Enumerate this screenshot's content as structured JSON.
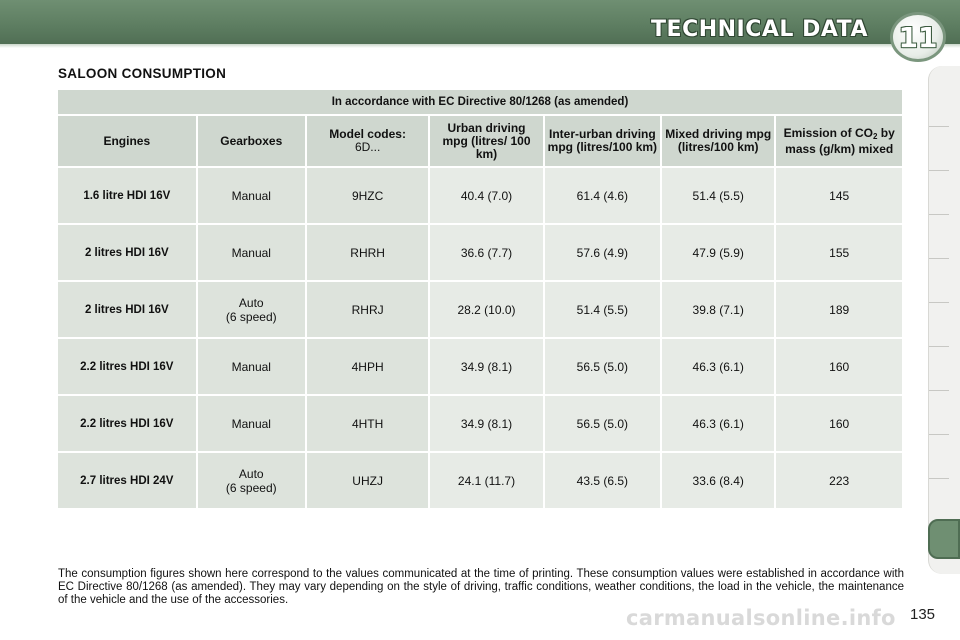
{
  "header": {
    "title": "TECHNICAL DATA",
    "chapter_number": "11",
    "color": "#5c7c60"
  },
  "section_title": "SALOON CONSUMPTION",
  "table": {
    "directive": "In accordance with EC Directive 80/1268 (as amended)",
    "columns": {
      "engines": "Engines",
      "gearboxes": "Gearboxes",
      "model_codes_label": "Model codes:",
      "model_codes_prefix": "6D...",
      "urban": "Urban driving mpg (litres/ 100 km)",
      "inter_urban": "Inter-urban driving mpg (litres/100 km)",
      "mixed": "Mixed driving mpg (litres/100 km)",
      "emission_a": "Emission of CO",
      "emission_sub": "2",
      "emission_b": " by mass (g/km) mixed"
    },
    "rows": [
      {
        "engine": "1.6 litre HDI 16V",
        "gearbox": "Manual",
        "gearbox_sub": "",
        "model": "9HZC",
        "urban": "40.4 (7.0)",
        "inter_urban": "61.4 (4.6)",
        "mixed": "51.4 (5.5)",
        "emission": "145"
      },
      {
        "engine": "2 litres HDI 16V",
        "gearbox": "Manual",
        "gearbox_sub": "",
        "model": "RHRH",
        "urban": "36.6 (7.7)",
        "inter_urban": "57.6 (4.9)",
        "mixed": "47.9 (5.9)",
        "emission": "155"
      },
      {
        "engine": "2 litres HDI 16V",
        "gearbox": "Auto",
        "gearbox_sub": "(6 speed)",
        "model": "RHRJ",
        "urban": "28.2 (10.0)",
        "inter_urban": "51.4 (5.5)",
        "mixed": "39.8 (7.1)",
        "emission": "189"
      },
      {
        "engine": "2.2 litres HDI 16V",
        "gearbox": "Manual",
        "gearbox_sub": "",
        "model": "4HPH",
        "urban": "34.9 (8.1)",
        "inter_urban": "56.5 (5.0)",
        "mixed": "46.3 (6.1)",
        "emission": "160"
      },
      {
        "engine": "2.2 litres HDI 16V",
        "gearbox": "Manual",
        "gearbox_sub": "",
        "model": "4HTH",
        "urban": "34.9 (8.1)",
        "inter_urban": "56.5 (5.0)",
        "mixed": "46.3 (6.1)",
        "emission": "160"
      },
      {
        "engine": "2.7 litres HDI 24V",
        "gearbox": "Auto",
        "gearbox_sub": "(6 speed)",
        "model": "UHZJ",
        "urban": "24.1 (11.7)",
        "inter_urban": "43.5 (6.5)",
        "mixed": "33.6 (8.4)",
        "emission": "223"
      }
    ]
  },
  "footnote": "The consumption figures shown here correspond to the values communicated at the time of printing. These consumption values were established in accordance with EC Directive 80/1268 (as amended). They may vary depending on the style of driving, traffic conditions, weather conditions, the load in the vehicle, the maintenance of the vehicle and the use of the accessories.",
  "page_number": "135",
  "watermark": "carmanualsonline.info"
}
